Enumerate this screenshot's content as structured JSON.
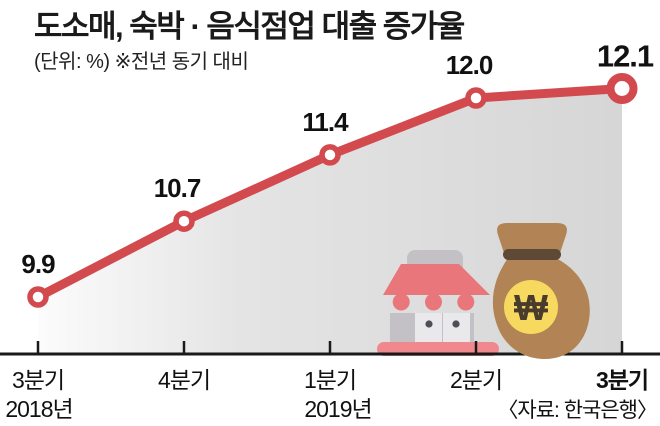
{
  "title": "도소매, 숙박 · 음식점업 대출 증가율",
  "subtitle": "(단위: %) ※전년 동기 대비",
  "source": "〈자료: 한국은행〉",
  "colors": {
    "line": "#d24a4e",
    "marker_fill": "#ffffff",
    "area_start": "#fcfcfc",
    "area_end": "#d6d6d6",
    "axis": "#1a1a1a",
    "text": "#111111"
  },
  "chart_data": {
    "type": "line",
    "title": "도소매, 숙박 · 음식점업 대출 증가율",
    "unit_note": "(단위: %) ※전년 동기 대비",
    "unit": "%",
    "comparison": "전년 동기 대비",
    "categories": [
      "3분기",
      "4분기",
      "1분기",
      "2분기",
      "3분기"
    ],
    "categories_bold": [
      false,
      false,
      false,
      false,
      true
    ],
    "category_years": [
      {
        "index": 0,
        "label": "2018년"
      },
      {
        "index": 2,
        "label": "2019년"
      }
    ],
    "values": [
      9.9,
      10.7,
      11.4,
      12.0,
      12.1
    ],
    "value_labels": [
      "9.9",
      "10.7",
      "11.4",
      "12.0",
      "12.1"
    ],
    "highlight_last_point": true,
    "ylim": [
      9.3,
      12.8
    ],
    "grid": false,
    "legend": "none",
    "source": "〈자료: 한국은행〉"
  },
  "icons": {
    "storefront": {
      "name": "storefront-icon",
      "awning_color": "#e8767b",
      "base_color": "#f0898d",
      "body_color": "#c3c1c5",
      "door_color": "#e9e8ea",
      "handle_color": "#4f4d55"
    },
    "money_bag": {
      "name": "money-bag-icon",
      "bag_color": "#b28455",
      "band_color": "#5d4936",
      "coin_color": "#f6d95e",
      "symbol": "₩"
    }
  }
}
